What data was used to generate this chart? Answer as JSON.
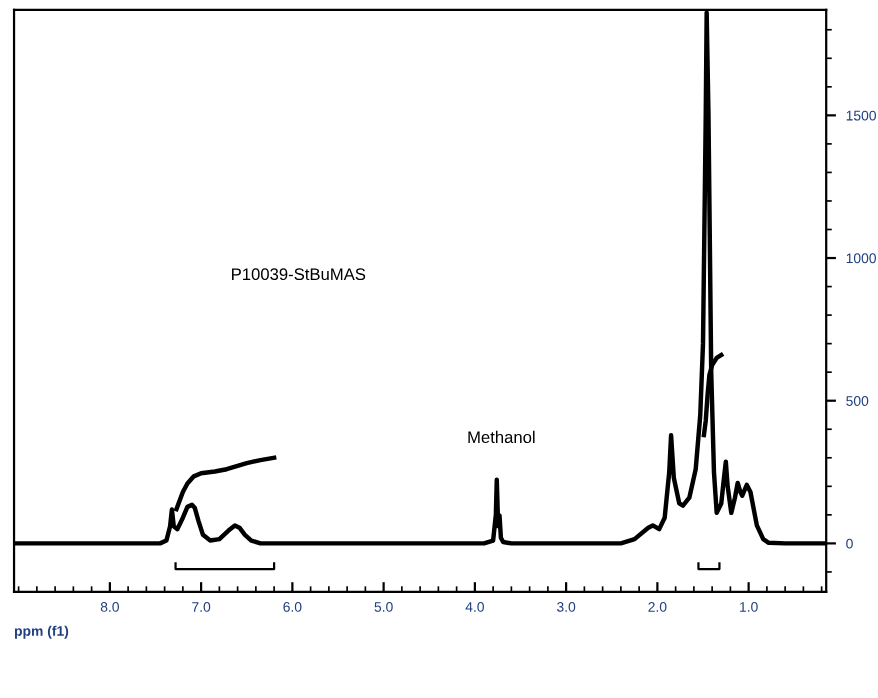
{
  "chart_data": {
    "type": "line",
    "xlabel": "ppm (f1)",
    "xlim": [
      9.05,
      0.15
    ],
    "xticks": [
      {
        "value": 8,
        "label": "8.0"
      },
      {
        "value": 7,
        "label": "7.0"
      },
      {
        "value": 6,
        "label": "6.0"
      },
      {
        "value": 5,
        "label": "5.0"
      },
      {
        "value": 4,
        "label": "4.0"
      },
      {
        "value": 3,
        "label": "3.0"
      },
      {
        "value": 2,
        "label": "2.0"
      },
      {
        "value": 1,
        "label": "1.0"
      }
    ],
    "ylim": [
      -170,
      1870
    ],
    "yticks": [
      0,
      500,
      1000,
      1500
    ],
    "grid": false,
    "marker": "none",
    "line_style": "solid",
    "annotations": [
      "P10039-StBuMAS",
      "Methanol"
    ],
    "series": [
      {
        "color": "#000000",
        "x": [
          9.05,
          7.45,
          7.38,
          7.34,
          7.32,
          7.3,
          7.26,
          7.2,
          7.15,
          7.1,
          7.07,
          7.03,
          6.98,
          6.9,
          6.8,
          6.7,
          6.63,
          6.58,
          6.52,
          6.45,
          6.35,
          6.2,
          3.9,
          3.8,
          3.77,
          3.76,
          3.745,
          3.73,
          3.715,
          3.69,
          3.6,
          2.4,
          2.25,
          2.1,
          2.05,
          1.98,
          1.92,
          1.87,
          1.85,
          1.82,
          1.76,
          1.72,
          1.65,
          1.58,
          1.53,
          1.5,
          1.47,
          1.46,
          1.44,
          1.41,
          1.38,
          1.35,
          1.3,
          1.27,
          1.25,
          1.23,
          1.19,
          1.15,
          1.12,
          1.09,
          1.07,
          1.04,
          1.02,
          0.98,
          0.91,
          0.84,
          0.78,
          0.6,
          0.15
        ],
        "values": [
          0,
          0,
          10,
          60,
          119,
          60,
          50,
          90,
          128,
          135,
          125,
          80,
          30,
          10,
          15,
          45,
          63,
          55,
          30,
          10,
          0,
          0,
          0,
          10,
          100,
          223,
          60,
          98,
          20,
          5,
          0,
          0,
          15,
          55,
          63,
          50,
          90,
          250,
          379,
          230,
          140,
          132,
          160,
          260,
          450,
          700,
          1500,
          1860,
          1500,
          600,
          250,
          107,
          140,
          230,
          286,
          200,
          107,
          160,
          212,
          180,
          167,
          190,
          205,
          180,
          63,
          15,
          2,
          0,
          0
        ]
      },
      {
        "color": "#000000",
        "x": [
          7.27,
          7.2,
          7.15,
          7.08,
          7.0,
          6.85,
          6.72,
          6.6,
          6.5,
          6.35,
          6.2
        ],
        "values": [
          120,
          180,
          210,
          235,
          246,
          252,
          260,
          272,
          281,
          292,
          300
        ]
      },
      {
        "color": "#000000",
        "x": [
          1.49,
          1.47,
          1.45,
          1.43,
          1.4,
          1.37,
          1.35,
          1.32,
          1.3
        ],
        "values": [
          380,
          430,
          520,
          590,
          625,
          640,
          650,
          656,
          660
        ]
      }
    ]
  }
}
